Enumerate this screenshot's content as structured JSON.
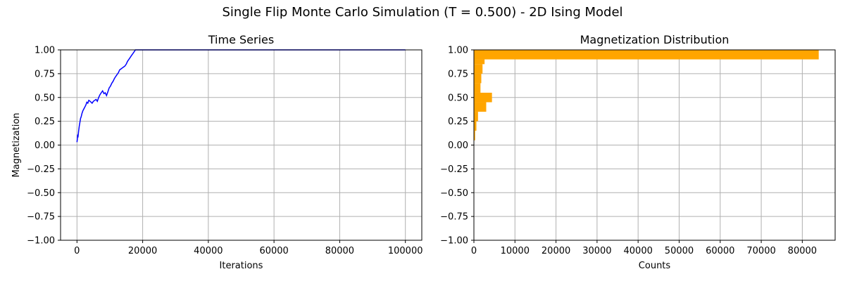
{
  "figure": {
    "title": "Single Flip Monte Carlo Simulation (T = 0.500) - 2D Ising Model"
  },
  "chart_data": [
    {
      "id": "time-series",
      "type": "line",
      "title": "Time Series",
      "xlabel": "Iterations",
      "ylabel": "Magnetization",
      "xlim": [
        -5000,
        105000
      ],
      "ylim": [
        -1.0,
        1.0
      ],
      "xticks": [
        0,
        20000,
        40000,
        60000,
        80000,
        100000
      ],
      "xtick_labels": [
        "0",
        "20000",
        "40000",
        "60000",
        "80000",
        "100000"
      ],
      "yticks": [
        -1.0,
        -0.75,
        -0.5,
        -0.25,
        0.0,
        0.25,
        0.5,
        0.75,
        1.0
      ],
      "ytick_labels": [
        "−1.00",
        "−0.75",
        "−0.50",
        "−0.25",
        "0.00",
        "0.25",
        "0.50",
        "0.75",
        "1.00"
      ],
      "grid": true,
      "series": [
        {
          "color": "#0000ff",
          "x": [
            0,
            100,
            200,
            300,
            500,
            700,
            900,
            1100,
            1300,
            1500,
            1800,
            2100,
            2400,
            2700,
            3000,
            3300,
            3600,
            4000,
            4300,
            4600,
            5000,
            5400,
            5800,
            6200,
            6600,
            7000,
            7400,
            7800,
            8200,
            8600,
            9000,
            9400,
            9800,
            10200,
            10600,
            11000,
            11400,
            11800,
            12200,
            12600,
            13000,
            13400,
            13800,
            14200,
            14600,
            15000,
            15400,
            15800,
            16200,
            16600,
            17000,
            17400,
            17800,
            18200,
            18600,
            20000,
            40000,
            60000,
            80000,
            100000
          ],
          "y": [
            0.03,
            0.06,
            0.11,
            0.08,
            0.15,
            0.2,
            0.24,
            0.28,
            0.3,
            0.33,
            0.36,
            0.38,
            0.4,
            0.42,
            0.45,
            0.44,
            0.47,
            0.46,
            0.45,
            0.44,
            0.46,
            0.47,
            0.48,
            0.46,
            0.5,
            0.53,
            0.55,
            0.57,
            0.54,
            0.55,
            0.52,
            0.56,
            0.6,
            0.62,
            0.65,
            0.67,
            0.7,
            0.72,
            0.74,
            0.76,
            0.79,
            0.8,
            0.81,
            0.82,
            0.83,
            0.85,
            0.88,
            0.9,
            0.92,
            0.94,
            0.96,
            0.98,
            1.0,
            1.0,
            1.0,
            1.0,
            1.0,
            1.0,
            1.0,
            1.0
          ]
        }
      ]
    },
    {
      "id": "magnetization-distribution",
      "type": "bar",
      "orientation": "horizontal",
      "title": "Magnetization Distribution",
      "xlabel": "Counts",
      "ylabel": "",
      "xlim": [
        0,
        88000
      ],
      "ylim": [
        -1.0,
        1.0
      ],
      "xticks": [
        0,
        10000,
        20000,
        30000,
        40000,
        50000,
        60000,
        70000,
        80000
      ],
      "xtick_labels": [
        "0",
        "10000",
        "20000",
        "30000",
        "40000",
        "50000",
        "60000",
        "70000",
        "80000"
      ],
      "yticks": [
        -1.0,
        -0.75,
        -0.5,
        -0.25,
        0.0,
        0.25,
        0.5,
        0.75,
        1.0
      ],
      "ytick_labels": [
        "−1.00",
        "−0.75",
        "−0.50",
        "−0.25",
        "0.00",
        "0.25",
        "0.50",
        "0.75",
        "1.00"
      ],
      "grid": true,
      "color": "#ffa500",
      "bins": [
        {
          "lo": 0.05,
          "hi": 0.15,
          "count": 300
        },
        {
          "lo": 0.15,
          "hi": 0.25,
          "count": 600
        },
        {
          "lo": 0.25,
          "hi": 0.35,
          "count": 1000
        },
        {
          "lo": 0.35,
          "hi": 0.45,
          "count": 3000
        },
        {
          "lo": 0.45,
          "hi": 0.55,
          "count": 4400
        },
        {
          "lo": 0.55,
          "hi": 0.65,
          "count": 1600
        },
        {
          "lo": 0.65,
          "hi": 0.75,
          "count": 1800
        },
        {
          "lo": 0.75,
          "hi": 0.85,
          "count": 2100
        },
        {
          "lo": 0.85,
          "hi": 0.9,
          "count": 2600
        },
        {
          "lo": 0.9,
          "hi": 1.0,
          "count": 84000
        }
      ]
    }
  ]
}
